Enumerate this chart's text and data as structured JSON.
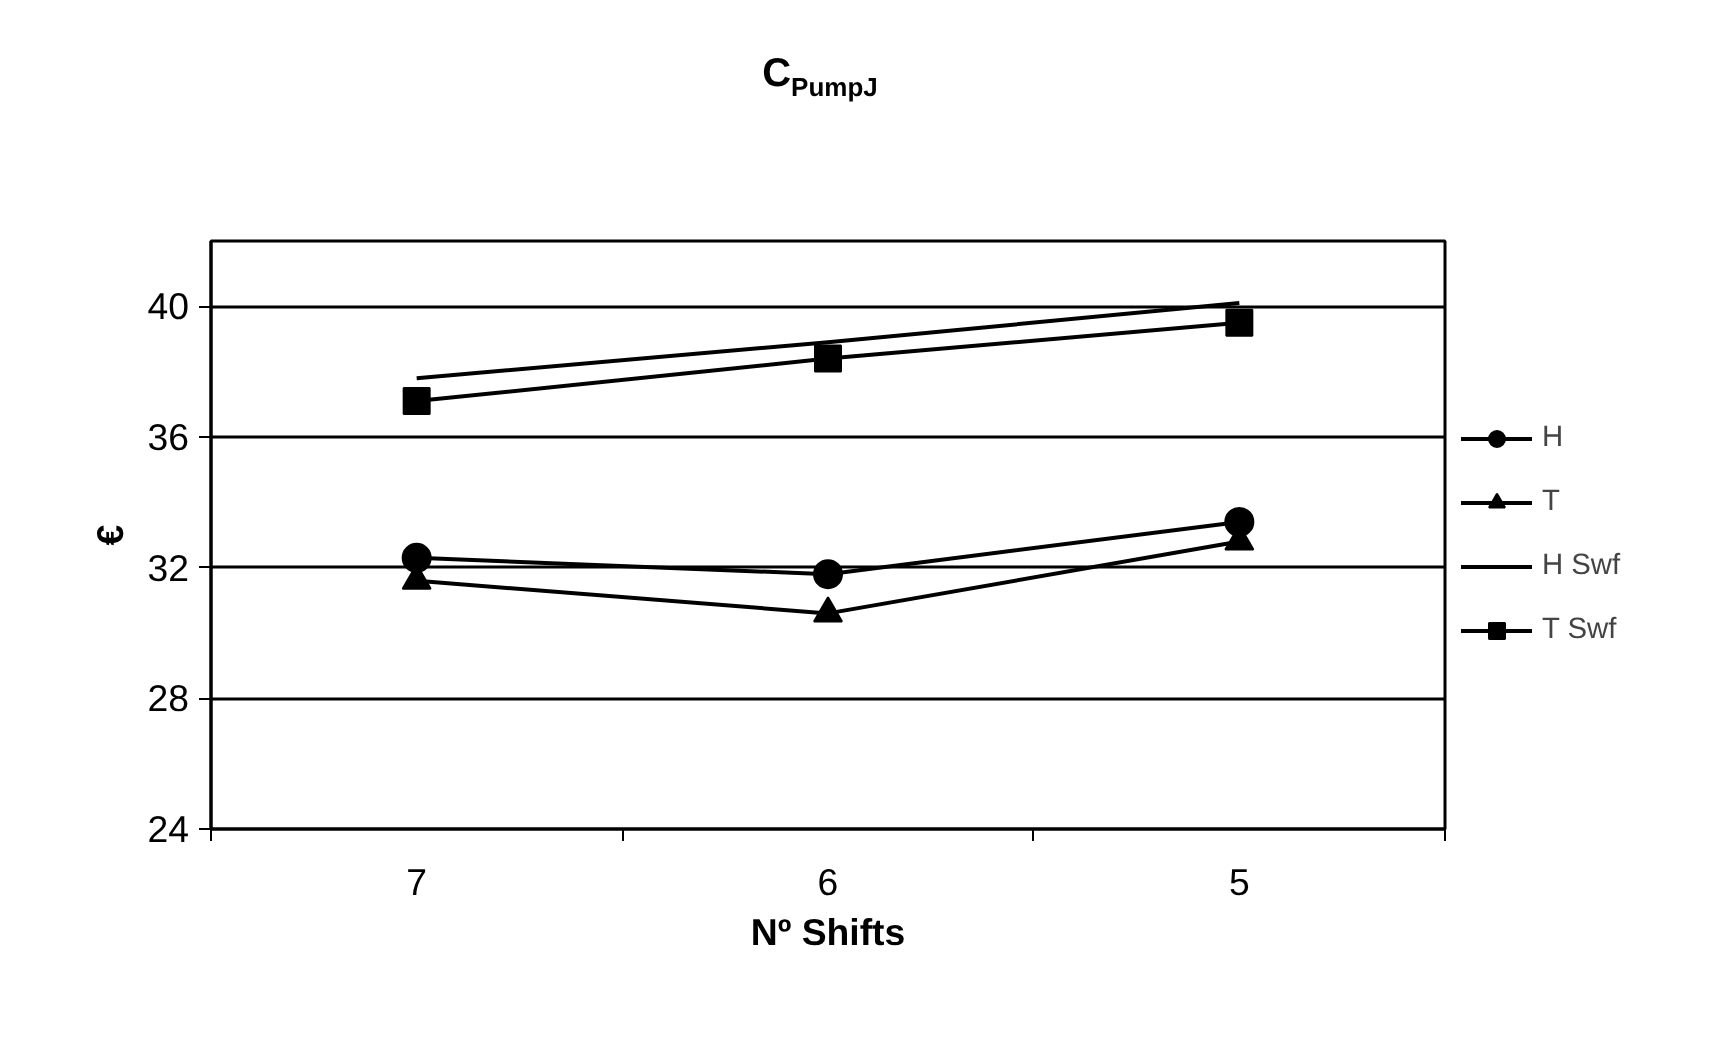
{
  "chart_data": {
    "type": "line",
    "title": "C$_{PumpJ}$",
    "xlabel": "Nº Shifts",
    "ylabel": "€",
    "categories": [
      "7",
      "6",
      "5"
    ],
    "series": [
      {
        "name": "H",
        "color": "#000000",
        "marker": "circle",
        "values": [
          32.3,
          31.8,
          33.4
        ]
      },
      {
        "name": "T",
        "color": "#000000",
        "marker": "triangle",
        "values": [
          31.6,
          30.6,
          32.8
        ]
      },
      {
        "name": "H Swf",
        "color": "#000000",
        "marker": "none",
        "values": [
          37.8,
          38.9,
          40.1
        ]
      },
      {
        "name": "T Swf",
        "color": "#000000",
        "marker": "square",
        "values": [
          37.1,
          38.4,
          39.5
        ]
      }
    ],
    "ylim": [
      24,
      42
    ],
    "yticks": [
      24,
      28,
      32,
      36,
      40
    ],
    "grid": "y",
    "legend": "right",
    "line_style": "solid"
  }
}
